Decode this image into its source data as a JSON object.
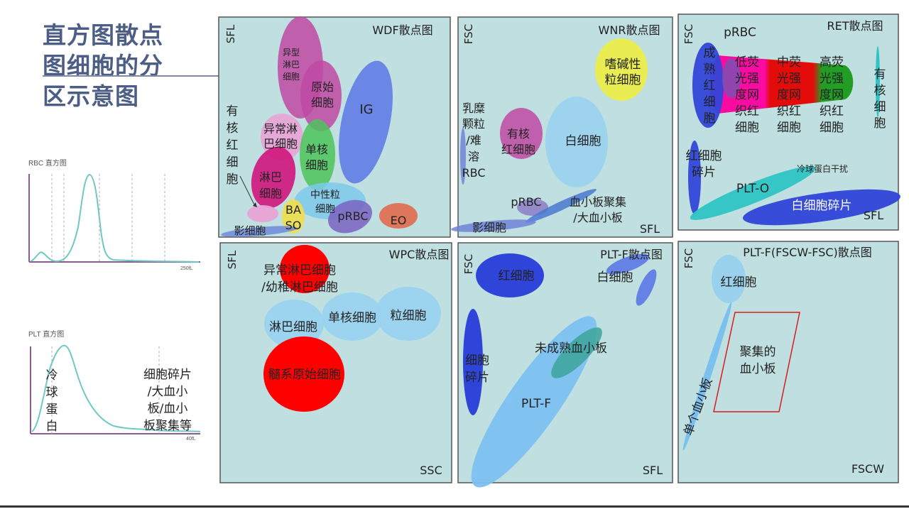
{
  "title": "直方图散点图细胞的分区示意图",
  "histograms": [
    {
      "label": "RBC 直方图",
      "end_tick": "250fL"
    },
    {
      "label": "PLT 直方图",
      "end_tick": "40fL",
      "annotations": [
        "冷球蛋白",
        "细胞碎片/大血小板/血小板聚集等"
      ]
    }
  ],
  "panels": [
    {
      "title": "WDF散点图",
      "y_axis": "SFL",
      "x_axis": "",
      "regions": [
        {
          "label": "异型淋巴细胞",
          "color": "#c04aa3"
        },
        {
          "label": "原始细胞",
          "color": "#c04aa3"
        },
        {
          "label": "IG",
          "color": "#5b78e6"
        },
        {
          "label": "有核红细胞",
          "color": ""
        },
        {
          "label": "异常淋巴细胞",
          "color": "#e8a3d6"
        },
        {
          "label": "单核细胞",
          "color": "#4cc45a"
        },
        {
          "label": "淋巴细胞",
          "color": "#d0157d"
        },
        {
          "label": "中性粒细胞",
          "color": "#7cc9ea"
        },
        {
          "label": "BASO",
          "color": "#f0de4a"
        },
        {
          "label": "pRBC",
          "color": "#7a63c2"
        },
        {
          "label": "EO",
          "color": "#e06a4c"
        },
        {
          "label": "影细胞",
          "color": "#6f89d8"
        }
      ]
    },
    {
      "title": "WNR散点图",
      "y_axis": "FSC",
      "x_axis": "SFL",
      "regions": [
        {
          "label": "嗜碱性粒细胞",
          "color": "#ebed4a"
        },
        {
          "label": "乳糜颗粒/难溶RBC",
          "color": "#6e84d6"
        },
        {
          "label": "有核红细胞",
          "color": "#c04aa3"
        },
        {
          "label": "白细胞",
          "color": "#9ad2ee"
        },
        {
          "label": "pRBC",
          "color": "#8c7ec4"
        },
        {
          "label": "血小板聚集/大血小板",
          "color": "#4a78d0"
        },
        {
          "label": "影细胞",
          "color": "#6e84d6"
        }
      ]
    },
    {
      "title": "RET散点图",
      "y_axis": "FSC",
      "x_axis": "SFL",
      "regions": [
        {
          "label": "pRBC",
          "color": "#7b4fb0"
        },
        {
          "label": "成熟红细胞",
          "color": "#3146d8"
        },
        {
          "label": "低荧光强度网织红细胞",
          "color": "#ff00a0"
        },
        {
          "label": "中荧光强度网织红细胞",
          "color": "#e60000"
        },
        {
          "label": "高荧光强度网织红细胞",
          "color": "#1a9a1a"
        },
        {
          "label": "有核细胞",
          "color": "#2ec4c4"
        },
        {
          "label": "红细胞碎片",
          "color": "#3146d8"
        },
        {
          "label": "冷球蛋白干扰",
          "color": "#2ec4c4"
        },
        {
          "label": "PLT-O",
          "color": "#2ec4c4"
        },
        {
          "label": "白细胞碎片",
          "color": "#2f44d8"
        }
      ]
    },
    {
      "title": "WPC散点图",
      "y_axis": "SFL",
      "x_axis": "SSC",
      "regions": [
        {
          "label": "异常淋巴细胞/幼稚淋巴细胞",
          "color": "#ff0000"
        },
        {
          "label": "淋巴细胞",
          "color": "#9ad2ee"
        },
        {
          "label": "单核细胞",
          "color": "#9ad2ee"
        },
        {
          "label": "粒细胞",
          "color": "#9ad2ee"
        },
        {
          "label": "髓系原始细胞",
          "color": "#ff0000"
        }
      ]
    },
    {
      "title": "PLT-F散点图",
      "y_axis": "FSC",
      "x_axis": "SFL",
      "regions": [
        {
          "label": "红细胞",
          "color": "#2f44d8"
        },
        {
          "label": "白细胞",
          "color": "#5b78e6"
        },
        {
          "label": "细胞碎片",
          "color": "#2f44d8"
        },
        {
          "label": "未成熟血小板",
          "color": "#3fa6a0"
        },
        {
          "label": "PLT-F",
          "color": "#7cc0f0"
        }
      ]
    },
    {
      "title": "PLT-F(FSCW-FSC)散点图",
      "y_axis": "FSC",
      "x_axis": "FSCW",
      "regions": [
        {
          "label": "红细胞",
          "color": "#9ad2ee"
        },
        {
          "label": "聚集的血小板",
          "color": "#d81c1c"
        },
        {
          "label": "单个血小板",
          "color": "#7cc0f0"
        }
      ]
    }
  ]
}
